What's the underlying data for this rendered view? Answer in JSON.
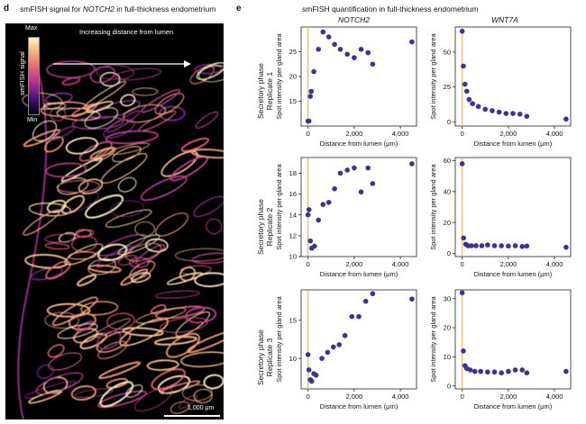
{
  "panel_d": {
    "label": "d",
    "title_pre": "smFISH signal for ",
    "title_gene": "NOTCH2",
    "title_post": " in full-thickness endometrium",
    "arrow_text": "Increasing distance from lumen",
    "colorbar": {
      "label": "smFISH signal",
      "max": "Max",
      "min": "Min"
    },
    "scalebar": "1,000 μm"
  },
  "panel_e": {
    "label": "e",
    "title": "smFISH quantification in full-thickness endometrium",
    "col_headers": [
      "NOTCH2",
      "WNT7A"
    ],
    "row_labels": [
      [
        "Secretory phase",
        "Replicate 1"
      ],
      [
        "Secretory phase",
        "Replicate 2"
      ],
      [
        "Secretory phase",
        "Replicate 3"
      ]
    ]
  },
  "colors": {
    "points": "#3a3396",
    "vline": "#f2a93b",
    "background_d": "#000000"
  },
  "chart_data": [
    {
      "type": "scatter",
      "row": 0,
      "col": 0,
      "xlabel": "Distance from lumen (μm)",
      "ylabel": "Spot intensity per gland area",
      "xlim": [
        -300,
        4700
      ],
      "ylim": [
        10,
        30
      ],
      "xticks": [
        0,
        2000,
        4000
      ],
      "xtick_labels": [
        "0",
        "2,000",
        "4,000"
      ],
      "yticks": [
        15,
        20,
        25
      ],
      "ytick_labels": [
        "15",
        "20",
        "25"
      ],
      "x": [
        0,
        40,
        100,
        140,
        250,
        450,
        650,
        900,
        1150,
        1400,
        1700,
        2000,
        2300,
        2600,
        2800,
        4500
      ],
      "y": [
        11,
        11,
        16,
        17,
        21,
        25.5,
        29,
        28,
        26.5,
        25.5,
        24.5,
        23.8,
        25.5,
        24.8,
        22.5,
        27
      ]
    },
    {
      "type": "scatter",
      "row": 0,
      "col": 1,
      "xlabel": "Distance from lumen (μm)",
      "ylabel": "Spot intensity per gland area",
      "xlim": [
        -300,
        4700
      ],
      "ylim": [
        -3,
        68
      ],
      "xticks": [
        0,
        2000,
        4000
      ],
      "xtick_labels": [
        "0",
        "2,000",
        "4,000"
      ],
      "yticks": [
        0,
        25,
        50
      ],
      "ytick_labels": [
        "0",
        "25",
        "50"
      ],
      "x": [
        0,
        50,
        120,
        200,
        300,
        450,
        700,
        1000,
        1300,
        1600,
        1900,
        2200,
        2500,
        2800,
        4500
      ],
      "y": [
        65,
        40,
        27,
        22,
        16,
        13,
        11,
        9,
        8,
        7,
        6,
        6,
        5.5,
        4,
        2
      ]
    },
    {
      "type": "scatter",
      "row": 1,
      "col": 0,
      "xlabel": "Distance from lumen (μm)",
      "ylabel": "Spot intensity per gland area",
      "xlim": [
        -300,
        4700
      ],
      "ylim": [
        10,
        19.5
      ],
      "xticks": [
        0,
        2000,
        4000
      ],
      "xtick_labels": [
        "0",
        "2,000",
        "4,000"
      ],
      "yticks": [
        10,
        12,
        14,
        16,
        18
      ],
      "ytick_labels": [
        "10",
        "12",
        "14",
        "16",
        "18"
      ],
      "x": [
        0,
        40,
        100,
        160,
        280,
        450,
        650,
        900,
        1150,
        1400,
        1700,
        2000,
        2300,
        2600,
        2800,
        4500
      ],
      "y": [
        14,
        14.5,
        11.5,
        10.8,
        11,
        13.5,
        15,
        15.2,
        16.5,
        18,
        18.3,
        18.5,
        16.2,
        18.5,
        17,
        18.9
      ]
    },
    {
      "type": "scatter",
      "row": 1,
      "col": 1,
      "xlabel": "Distance from lumen (μm)",
      "ylabel": "Spot intensity per gland area",
      "xlim": [
        -300,
        4700
      ],
      "ylim": [
        -2,
        62
      ],
      "xticks": [
        0,
        2000,
        4000
      ],
      "xtick_labels": [
        "0",
        "2,000",
        "4,000"
      ],
      "yticks": [
        0,
        20,
        40,
        60
      ],
      "ytick_labels": [
        "0",
        "20",
        "40",
        "60"
      ],
      "x": [
        0,
        60,
        150,
        250,
        400,
        600,
        850,
        1100,
        1400,
        1700,
        2000,
        2300,
        2600,
        2800,
        4500
      ],
      "y": [
        58,
        10,
        6,
        5,
        5,
        5,
        5,
        5.5,
        5,
        5,
        4.8,
        5,
        4.5,
        4.8,
        4
      ]
    },
    {
      "type": "scatter",
      "row": 2,
      "col": 0,
      "xlabel": "Distance from lumen (μm)",
      "ylabel": "Spot intensity per gland area",
      "xlim": [
        -300,
        4700
      ],
      "ylim": [
        6,
        19
      ],
      "xticks": [
        0,
        2000,
        4000
      ],
      "xtick_labels": [
        "0",
        "2,000",
        "4,000"
      ],
      "yticks": [
        10,
        15
      ],
      "ytick_labels": [
        "10",
        "15"
      ],
      "x": [
        0,
        40,
        100,
        160,
        250,
        350,
        600,
        850,
        1100,
        1350,
        1600,
        1900,
        2200,
        2500,
        2800,
        4500
      ],
      "y": [
        10.5,
        8.5,
        7.2,
        7,
        8,
        7.8,
        10,
        10.8,
        11.5,
        11.8,
        13,
        15.5,
        15.5,
        17.5,
        18.5,
        17.8
      ]
    },
    {
      "type": "scatter",
      "row": 2,
      "col": 1,
      "xlabel": "Distance from lumen (μm)",
      "ylabel": "Spot intensity per gland area",
      "xlim": [
        -300,
        4700
      ],
      "ylim": [
        -1,
        33
      ],
      "xticks": [
        0,
        2000,
        4000
      ],
      "xtick_labels": [
        "0",
        "2,000",
        "4,000"
      ],
      "yticks": [
        0,
        10,
        20,
        30
      ],
      "ytick_labels": [
        "0",
        "10",
        "20",
        "30"
      ],
      "x": [
        0,
        50,
        120,
        200,
        350,
        550,
        800,
        1100,
        1400,
        1700,
        2000,
        2300,
        2600,
        2800,
        4500
      ],
      "y": [
        32,
        12,
        7,
        6,
        5.5,
        5,
        5,
        4.8,
        4.8,
        4.5,
        5,
        5.5,
        5.5,
        4.5,
        5
      ]
    }
  ]
}
